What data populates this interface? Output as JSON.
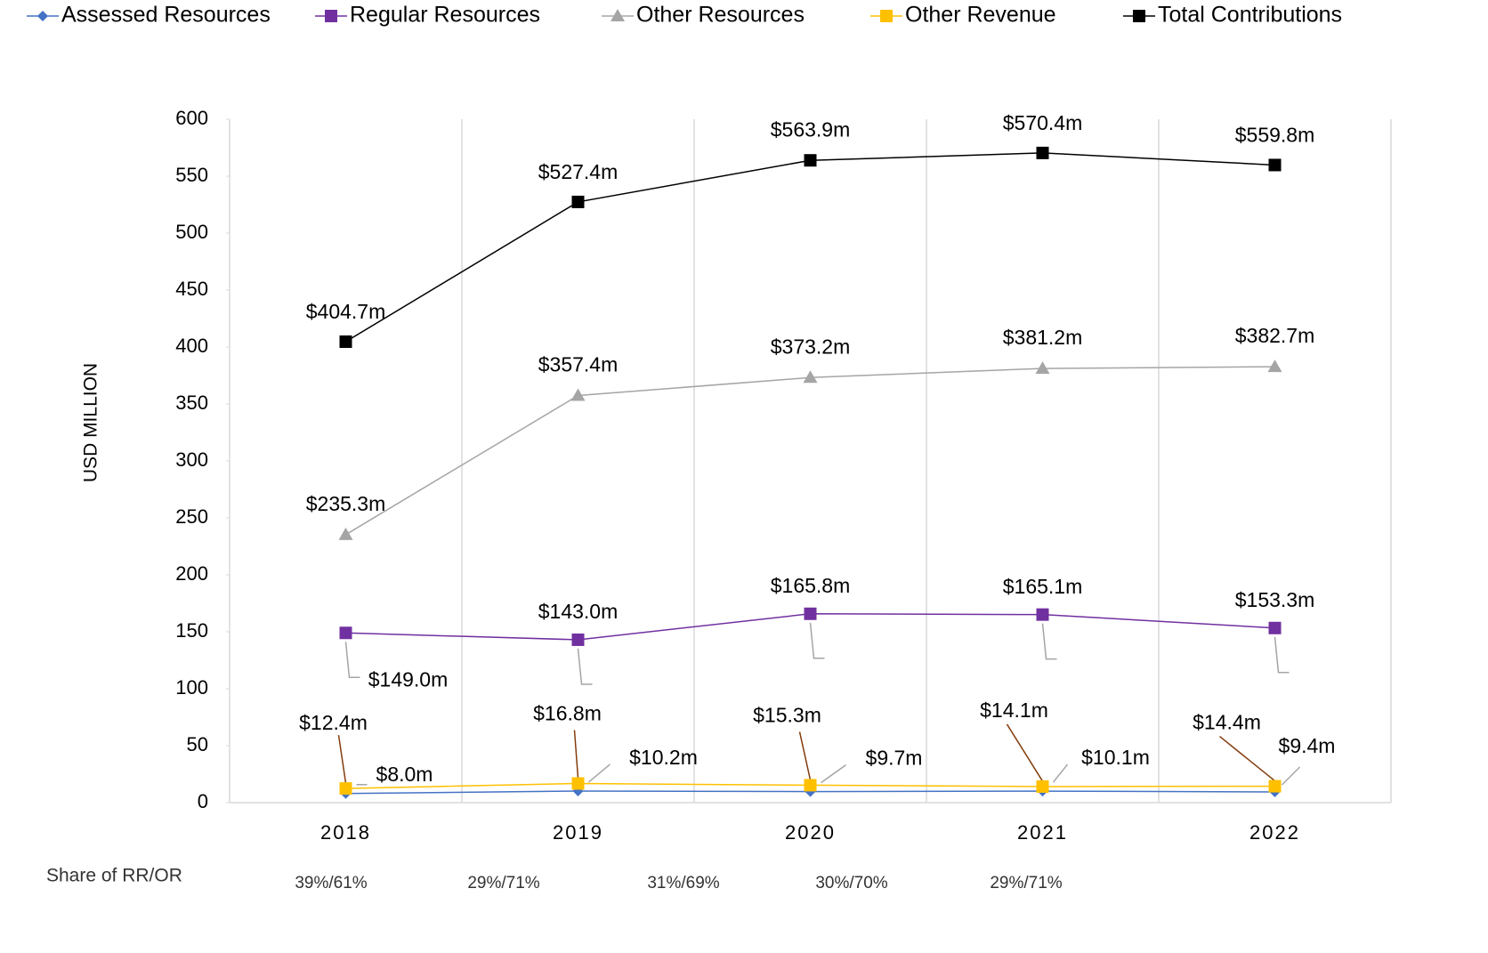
{
  "chart_data": {
    "type": "line",
    "y_label": "USD MILLION",
    "categories": [
      "2018",
      "2019",
      "2020",
      "2021",
      "2022"
    ],
    "series": [
      {
        "name": "Assessed Resources",
        "color": "#4472c4",
        "marker": "diamond",
        "values": [
          8.0,
          10.2,
          9.7,
          10.1,
          9.4
        ],
        "value_labels": [
          "$8.0m",
          "$10.2m",
          "$9.7m",
          "$10.1m",
          "$9.4m"
        ]
      },
      {
        "name": "Regular Resources",
        "color": "#7030a0",
        "marker": "square",
        "values": [
          149.0,
          143.0,
          165.8,
          165.1,
          153.3
        ],
        "value_labels": [
          "$149.0m",
          "$143.0m",
          "$165.8m",
          "$165.1m",
          "$153.3m"
        ]
      },
      {
        "name": "Other Resources",
        "color": "#a5a5a5",
        "marker": "triangle",
        "values": [
          235.3,
          357.4,
          373.2,
          381.2,
          382.7
        ],
        "value_labels": [
          "$235.3m",
          "$357.4m",
          "$373.2m",
          "$381.2m",
          "$382.7m"
        ]
      },
      {
        "name": "Other Revenue",
        "color": "#ffc000",
        "marker": "square",
        "values": [
          12.4,
          16.8,
          15.3,
          14.1,
          14.4
        ],
        "value_labels": [
          "$12.4m",
          "$16.8m",
          "$15.3m",
          "$14.1m",
          "$14.4m"
        ]
      },
      {
        "name": "Total Contributions",
        "color": "#000000",
        "marker": "square",
        "values": [
          404.7,
          527.4,
          563.9,
          570.4,
          559.8
        ],
        "value_labels": [
          "$404.7m",
          "$527.4m",
          "$563.9m",
          "$570.4m",
          "$559.8m"
        ]
      }
    ],
    "ylim": [
      0,
      600
    ],
    "yticks": [
      0,
      50,
      100,
      150,
      200,
      250,
      300,
      350,
      400,
      450,
      500,
      550,
      600
    ],
    "grid": "vertical",
    "legend": "top",
    "share_row": {
      "label": "Share of RR/OR",
      "values": [
        "39%/61%",
        "29%/71%",
        "31%/69%",
        "30%/70%",
        "29%/71%"
      ]
    }
  }
}
